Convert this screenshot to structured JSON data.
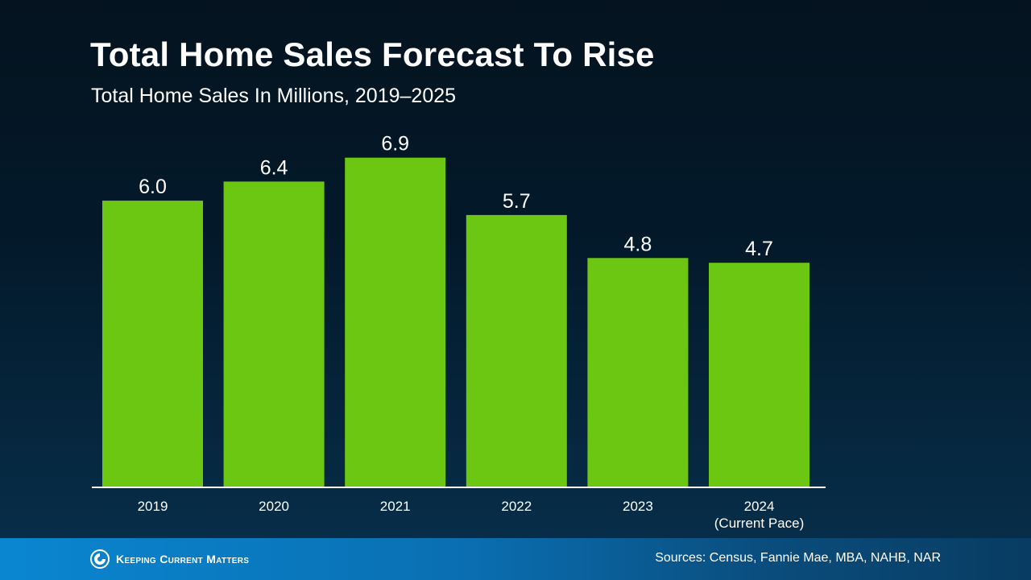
{
  "title": "Total Home Sales Forecast To Rise",
  "subtitle": "Total Home Sales In Millions, 2019–2025",
  "chart_data": {
    "type": "bar",
    "categories": [
      [
        "2019"
      ],
      [
        "2020"
      ],
      [
        "2021"
      ],
      [
        "2022"
      ],
      [
        "2023"
      ],
      [
        "2024",
        "(Current Pace)"
      ]
    ],
    "values": [
      6.0,
      6.4,
      6.9,
      5.7,
      4.8,
      4.7
    ],
    "data_labels": [
      "6.0",
      "6.4",
      "6.9",
      "5.7",
      "4.8",
      "4.7"
    ],
    "ylim": [
      0,
      7.3
    ],
    "grid": false,
    "bar_color": "#6cc713"
  },
  "footer": {
    "brand": "Keeping Current Matters",
    "sources": "Sources: Census, Fannie Mae, MBA, NAHB, NAR"
  },
  "colors": {
    "axis": "#ffffff",
    "footer_accent": "#0a86d0"
  }
}
